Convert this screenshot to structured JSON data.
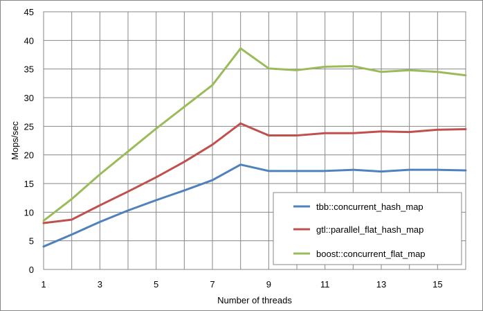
{
  "chart_data": {
    "type": "line",
    "title": "",
    "xlabel": "Number of threads",
    "ylabel": "Mops/sec",
    "xlim": [
      1,
      16
    ],
    "ylim": [
      0,
      45
    ],
    "x": [
      1,
      2,
      3,
      4,
      5,
      6,
      7,
      8,
      9,
      10,
      11,
      12,
      13,
      14,
      15,
      16
    ],
    "x_tick_labels": [
      "1",
      "3",
      "5",
      "7",
      "9",
      "11",
      "13",
      "15"
    ],
    "y_ticks": [
      0,
      5,
      10,
      15,
      20,
      25,
      30,
      35,
      40,
      45
    ],
    "grid": true,
    "legend_position": "bottom-right",
    "series": [
      {
        "name": "tbb::concurrent_hash_map",
        "color": "#4f81bd",
        "values": [
          4.0,
          6.1,
          8.3,
          10.3,
          12.1,
          13.8,
          15.6,
          18.3,
          17.2,
          17.2,
          17.2,
          17.4,
          17.1,
          17.4,
          17.4,
          17.3
        ]
      },
      {
        "name": "gtl::parallel_flat_hash_map",
        "color": "#c0504d",
        "values": [
          8.1,
          8.7,
          11.2,
          13.6,
          16.1,
          18.8,
          21.8,
          25.5,
          23.4,
          23.4,
          23.8,
          23.8,
          24.1,
          24.0,
          24.4,
          24.5
        ]
      },
      {
        "name": "boost::concurrent_flat_map",
        "color": "#9bbb59",
        "values": [
          8.5,
          12.3,
          16.6,
          20.6,
          24.6,
          28.4,
          32.2,
          38.6,
          35.1,
          34.8,
          35.4,
          35.5,
          34.5,
          34.8,
          34.5,
          33.9
        ]
      }
    ]
  }
}
